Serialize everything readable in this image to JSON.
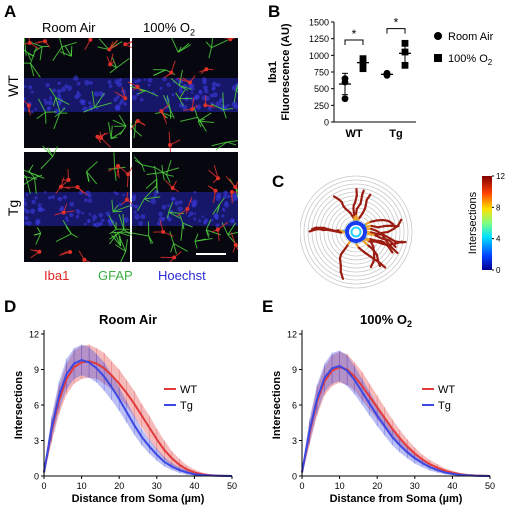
{
  "panels": {
    "A": {
      "letter": "A",
      "col_headers": [
        "Room Air",
        "100% O2"
      ],
      "row_headers": [
        "WT",
        "Tg"
      ],
      "stains": [
        {
          "label": "Iba1",
          "color": "#e0231f"
        },
        {
          "label": "GFAP",
          "color": "#3cb043"
        },
        {
          "label": "Hoechst",
          "color": "#2b2bd9"
        }
      ]
    },
    "B": {
      "letter": "B"
    },
    "C": {
      "letter": "C"
    },
    "D": {
      "letter": "D"
    },
    "E": {
      "letter": "E"
    }
  },
  "chart_data": [
    {
      "id": "B",
      "type": "scatter",
      "ylabel_line1": "Iba1",
      "ylabel_line2": "Fluorescence (AU)",
      "categories": [
        "WT",
        "Tg"
      ],
      "ylim": [
        0,
        1500
      ],
      "yticks": [
        0,
        250,
        500,
        750,
        1000,
        1250,
        1500
      ],
      "series": [
        {
          "name": "Room Air",
          "marker": "circle",
          "points": {
            "WT": [
              650,
              600,
              350
            ],
            "Tg": [
              730,
              700,
              720
            ]
          },
          "mean": {
            "WT": 570,
            "Tg": 715
          },
          "sd": {
            "WT": 160,
            "Tg": 20
          }
        },
        {
          "name": "100% O2",
          "marker": "square",
          "points": {
            "WT": [
              950,
              880,
              800
            ],
            "Tg": [
              1180,
              1050,
              850
            ]
          },
          "mean": {
            "WT": 890,
            "Tg": 1030
          },
          "sd": {
            "WT": 90,
            "Tg": 180
          }
        }
      ],
      "annotations": [
        "*",
        "*"
      ],
      "legend_position": "top-right"
    },
    {
      "id": "C",
      "type": "heatmap",
      "colorbar_label": "Intersections",
      "colorbar_ticks": [
        0,
        4,
        8,
        12
      ],
      "range": [
        0,
        12
      ]
    },
    {
      "id": "D",
      "type": "line",
      "title": "Room Air",
      "xlabel": "Distance from Soma (µm)",
      "ylabel": "Intersections",
      "xlim": [
        0,
        50
      ],
      "ylim": [
        0,
        12
      ],
      "xticks": [
        0,
        10,
        20,
        30,
        40,
        50
      ],
      "yticks": [
        0,
        3,
        6,
        9,
        12
      ],
      "legend_position": "right",
      "series": [
        {
          "name": "WT",
          "color": "#e23b3b",
          "band": "rgba(226,59,59,0.35)",
          "x": [
            0,
            2,
            4,
            6,
            8,
            10,
            12,
            14,
            16,
            18,
            20,
            22,
            24,
            26,
            28,
            30,
            32,
            34,
            36,
            38,
            40,
            42,
            44,
            46,
            48,
            50
          ],
          "y": [
            0.3,
            3.8,
            6.4,
            8.2,
            9.2,
            9.6,
            9.7,
            9.5,
            9.1,
            8.5,
            7.8,
            7.0,
            6.1,
            5.1,
            4.1,
            3.1,
            2.2,
            1.5,
            0.95,
            0.55,
            0.3,
            0.15,
            0.07,
            0.03,
            0.01,
            0
          ],
          "err": [
            0.3,
            1.0,
            1.2,
            1.3,
            1.4,
            1.4,
            1.4,
            1.3,
            1.3,
            1.2,
            1.2,
            1.1,
            1.1,
            1.0,
            1.0,
            0.9,
            0.8,
            0.6,
            0.5,
            0.35,
            0.25,
            0.15,
            0.08,
            0.04,
            0.02,
            0
          ]
        },
        {
          "name": "Tg",
          "color": "#3b48e2",
          "band": "rgba(59,72,226,0.35)",
          "x": [
            0,
            2,
            4,
            6,
            8,
            10,
            12,
            14,
            16,
            18,
            20,
            22,
            24,
            26,
            28,
            30,
            32,
            34,
            36,
            38,
            40,
            42,
            44,
            46,
            48,
            50
          ],
          "y": [
            0.3,
            4.0,
            6.8,
            8.6,
            9.5,
            9.8,
            9.6,
            9.1,
            8.4,
            7.5,
            6.5,
            5.4,
            4.3,
            3.3,
            2.5,
            1.8,
            1.2,
            0.8,
            0.5,
            0.3,
            0.15,
            0.08,
            0.04,
            0.02,
            0.01,
            0
          ],
          "err": [
            0.3,
            1.0,
            1.2,
            1.3,
            1.3,
            1.3,
            1.3,
            1.2,
            1.2,
            1.1,
            1.0,
            0.9,
            0.8,
            0.7,
            0.6,
            0.5,
            0.4,
            0.3,
            0.25,
            0.18,
            0.1,
            0.06,
            0.03,
            0.02,
            0.01,
            0
          ]
        }
      ]
    },
    {
      "id": "E",
      "type": "line",
      "title": "100% O2",
      "xlabel": "Distance from Soma (µm)",
      "ylabel": "Intersections",
      "xlim": [
        0,
        50
      ],
      "ylim": [
        0,
        12
      ],
      "xticks": [
        0,
        10,
        20,
        30,
        40,
        50
      ],
      "yticks": [
        0,
        3,
        6,
        9,
        12
      ],
      "legend_position": "right",
      "series": [
        {
          "name": "WT",
          "color": "#e23b3b",
          "band": "rgba(226,59,59,0.35)",
          "x": [
            0,
            2,
            4,
            6,
            8,
            10,
            12,
            14,
            16,
            18,
            20,
            22,
            24,
            26,
            28,
            30,
            32,
            34,
            36,
            38,
            40,
            42,
            44,
            46,
            48,
            50
          ],
          "y": [
            0.3,
            3.6,
            6.3,
            8.0,
            8.9,
            9.2,
            9.0,
            8.4,
            7.6,
            6.7,
            5.8,
            4.9,
            4.0,
            3.2,
            2.5,
            1.9,
            1.4,
            1.0,
            0.7,
            0.45,
            0.28,
            0.16,
            0.08,
            0.04,
            0.02,
            0
          ],
          "err": [
            0.3,
            1.0,
            1.2,
            1.2,
            1.3,
            1.3,
            1.3,
            1.2,
            1.2,
            1.1,
            1.0,
            0.9,
            0.8,
            0.7,
            0.6,
            0.5,
            0.4,
            0.35,
            0.3,
            0.2,
            0.15,
            0.1,
            0.05,
            0.03,
            0.01,
            0
          ]
        },
        {
          "name": "Tg",
          "color": "#3b48e2",
          "band": "rgba(59,72,226,0.35)",
          "x": [
            0,
            2,
            4,
            6,
            8,
            10,
            12,
            14,
            16,
            18,
            20,
            22,
            24,
            26,
            28,
            30,
            32,
            34,
            36,
            38,
            40,
            42,
            44,
            46,
            48,
            50
          ],
          "y": [
            0.3,
            3.8,
            6.5,
            8.3,
            9.1,
            9.3,
            8.9,
            8.1,
            7.1,
            6.1,
            5.1,
            4.2,
            3.3,
            2.6,
            2.0,
            1.5,
            1.1,
            0.75,
            0.5,
            0.3,
            0.18,
            0.1,
            0.05,
            0.02,
            0.01,
            0
          ],
          "err": [
            0.3,
            1.0,
            1.2,
            1.2,
            1.3,
            1.3,
            1.3,
            1.2,
            1.1,
            1.0,
            0.9,
            0.8,
            0.7,
            0.6,
            0.5,
            0.45,
            0.35,
            0.3,
            0.22,
            0.15,
            0.1,
            0.06,
            0.03,
            0.02,
            0.01,
            0
          ]
        }
      ]
    }
  ]
}
